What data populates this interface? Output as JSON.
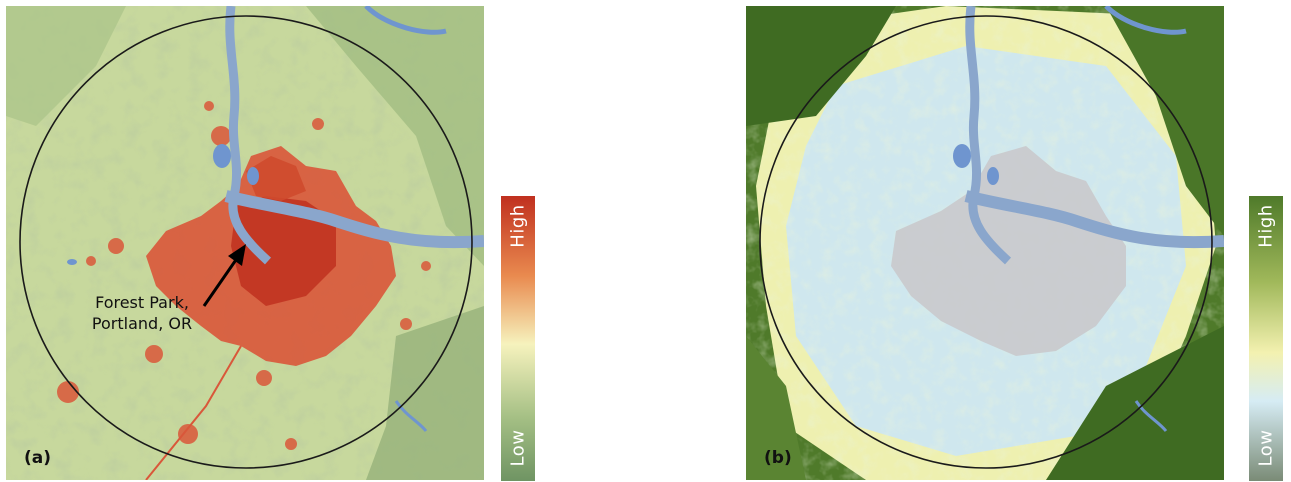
{
  "panel_a": {
    "label": "(a)",
    "annotation_lines": [
      "Forest Park,",
      "Portland, OR"
    ],
    "legend": {
      "high": "High",
      "low": "Low",
      "colors": [
        "#c0301f",
        "#e98a4f",
        "#f6f2bd",
        "#a4bf84",
        "#6f9463"
      ]
    }
  },
  "panel_b": {
    "label": "(b)",
    "legend": {
      "high": "High",
      "low": "Low",
      "colors": [
        "#4f7a2a",
        "#a0b85a",
        "#f3f1b0",
        "#d6ecf4",
        "#7a8b76"
      ]
    }
  }
}
